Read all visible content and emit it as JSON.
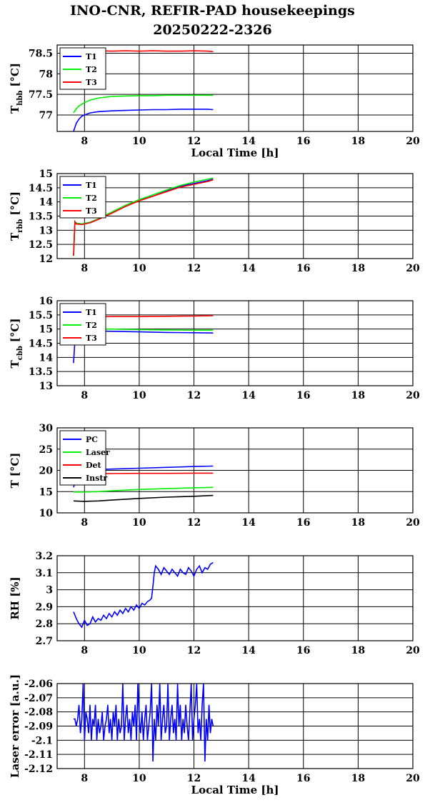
{
  "title": "INO-CNR, REFIR-PAD housekeepings",
  "subtitle": "20250222-2326",
  "colors": {
    "blue": "#0000ff",
    "green": "#00ee00",
    "red": "#ff0000",
    "black": "#000000"
  },
  "chart_data": [
    {
      "type": "line",
      "ylabel": "T",
      "ylabel_sub": "hbb",
      "ylabel_unit": "[°C]",
      "xlabel": "Local Time [h]",
      "xlim": [
        7,
        20
      ],
      "ylim": [
        76.6,
        78.7
      ],
      "xticks": [
        "8",
        "10",
        "12",
        "14",
        "16",
        "18",
        "20"
      ],
      "yticks": [
        "77",
        "77.5",
        "78",
        "78.5"
      ],
      "grid": true,
      "legend": "top-left",
      "series": [
        {
          "name": "T1",
          "color": "blue",
          "x": [
            7.6,
            7.7,
            7.8,
            7.9,
            8.0,
            8.2,
            8.5,
            9.0,
            9.5,
            10.0,
            10.5,
            11.0,
            11.5,
            12.0,
            12.5,
            12.7
          ],
          "values": [
            76.6,
            76.8,
            76.9,
            76.97,
            77.0,
            77.05,
            77.08,
            77.1,
            77.11,
            77.12,
            77.13,
            77.13,
            77.14,
            77.14,
            77.14,
            77.13
          ]
        },
        {
          "name": "T2",
          "color": "green",
          "x": [
            7.6,
            7.7,
            7.8,
            8.0,
            8.2,
            8.5,
            9.0,
            9.5,
            10.0,
            10.5,
            11.0,
            11.5,
            12.0,
            12.5,
            12.7
          ],
          "values": [
            77.05,
            77.15,
            77.22,
            77.3,
            77.36,
            77.41,
            77.45,
            77.46,
            77.47,
            77.47,
            77.48,
            77.48,
            77.48,
            77.48,
            77.48
          ]
        },
        {
          "name": "T3",
          "color": "red",
          "x": [
            7.6,
            8.0,
            8.5,
            9.0,
            9.5,
            10.0,
            10.5,
            11.0,
            11.5,
            12.0,
            12.5,
            12.7
          ],
          "values": [
            78.55,
            78.56,
            78.56,
            78.55,
            78.56,
            78.55,
            78.56,
            78.55,
            78.55,
            78.56,
            78.55,
            78.54
          ]
        }
      ]
    },
    {
      "type": "line",
      "ylabel": "T",
      "ylabel_sub": "rbb",
      "ylabel_unit": "[°C]",
      "xlabel": "",
      "xlim": [
        7,
        20
      ],
      "ylim": [
        12,
        15
      ],
      "xticks": [
        "8",
        "10",
        "12",
        "14",
        "16",
        "18",
        "20"
      ],
      "yticks": [
        "12",
        "12.5",
        "13",
        "13.5",
        "14",
        "14.5",
        "15"
      ],
      "grid": true,
      "legend": "top-left",
      "series": [
        {
          "name": "T1",
          "color": "blue",
          "x": [
            7.6,
            7.65,
            7.7,
            7.9,
            8.2,
            8.5,
            9.0,
            9.5,
            10.0,
            10.5,
            11.0,
            11.5,
            12.0,
            12.5,
            12.7
          ],
          "values": [
            12.1,
            13.3,
            13.25,
            13.22,
            13.28,
            13.4,
            13.62,
            13.85,
            14.05,
            14.2,
            14.38,
            14.55,
            14.65,
            14.75,
            14.8
          ]
        },
        {
          "name": "T2",
          "color": "green",
          "x": [
            7.6,
            7.65,
            7.7,
            7.9,
            8.2,
            8.5,
            9.0,
            9.5,
            10.0,
            10.5,
            11.0,
            11.5,
            12.0,
            12.5,
            12.7
          ],
          "values": [
            12.1,
            13.3,
            13.25,
            13.22,
            13.28,
            13.4,
            13.64,
            13.88,
            14.08,
            14.25,
            14.42,
            14.58,
            14.7,
            14.8,
            14.84
          ]
        },
        {
          "name": "T3",
          "color": "red",
          "x": [
            7.6,
            7.65,
            7.7,
            7.9,
            8.2,
            8.5,
            9.0,
            9.5,
            10.0,
            10.5,
            11.0,
            11.5,
            12.0,
            12.5,
            12.7
          ],
          "values": [
            12.1,
            13.3,
            13.22,
            13.2,
            13.26,
            13.38,
            13.6,
            13.84,
            14.04,
            14.2,
            14.36,
            14.52,
            14.62,
            14.72,
            14.78
          ]
        }
      ]
    },
    {
      "type": "line",
      "ylabel": "T",
      "ylabel_sub": "cbb",
      "ylabel_unit": "[°C]",
      "xlabel": "",
      "xlim": [
        7,
        20
      ],
      "ylim": [
        13,
        16
      ],
      "xticks": [
        "8",
        "10",
        "12",
        "14",
        "16",
        "18",
        "20"
      ],
      "yticks": [
        "13",
        "13.5",
        "14",
        "14.5",
        "15",
        "15.5",
        "16"
      ],
      "grid": true,
      "legend": "top-left",
      "series": [
        {
          "name": "T1",
          "color": "blue",
          "x": [
            7.6,
            7.65,
            7.7,
            8.0,
            8.5,
            9.0,
            10.0,
            11.0,
            12.0,
            12.7
          ],
          "values": [
            13.8,
            14.6,
            14.95,
            14.96,
            14.93,
            14.92,
            14.9,
            14.88,
            14.87,
            14.86
          ]
        },
        {
          "name": "T2",
          "color": "green",
          "x": [
            7.6,
            7.7,
            8.0,
            8.5,
            9.0,
            10.0,
            11.0,
            12.0,
            12.7
          ],
          "values": [
            15.0,
            15.02,
            15.02,
            15.0,
            15.0,
            14.98,
            14.97,
            14.96,
            14.96
          ]
        },
        {
          "name": "T3",
          "color": "red",
          "x": [
            7.6,
            8.0,
            8.5,
            9.0,
            10.0,
            11.0,
            12.0,
            12.7
          ],
          "values": [
            15.45,
            15.44,
            15.43,
            15.44,
            15.44,
            15.45,
            15.46,
            15.47
          ]
        }
      ]
    },
    {
      "type": "line",
      "ylabel": "T",
      "ylabel_sub": "",
      "ylabel_unit": "[°C]",
      "xlabel": "",
      "xlim": [
        7,
        20
      ],
      "ylim": [
        10,
        30
      ],
      "xticks": [
        "8",
        "10",
        "12",
        "14",
        "16",
        "18",
        "20"
      ],
      "yticks": [
        "10",
        "15",
        "20",
        "25",
        "30"
      ],
      "grid": true,
      "legend": "top-left",
      "series": [
        {
          "name": "PC",
          "color": "blue",
          "x": [
            7.6,
            7.7,
            7.9,
            8.2,
            8.5,
            9.0,
            10.0,
            11.0,
            12.0,
            12.7
          ],
          "values": [
            16.0,
            18.0,
            19.8,
            20.1,
            20.2,
            20.3,
            20.5,
            20.7,
            20.9,
            21.0
          ]
        },
        {
          "name": "Laser",
          "color": "green",
          "x": [
            7.6,
            8.0,
            8.5,
            9.0,
            10.0,
            11.0,
            12.0,
            12.7
          ],
          "values": [
            14.9,
            14.9,
            15.0,
            15.2,
            15.5,
            15.7,
            15.9,
            16.0
          ]
        },
        {
          "name": "Det",
          "color": "red",
          "x": [
            7.6,
            8.0,
            8.5,
            9.0,
            10.0,
            11.0,
            12.0,
            12.7
          ],
          "values": [
            19.2,
            19.2,
            19.2,
            19.25,
            19.3,
            19.3,
            19.35,
            19.35
          ]
        },
        {
          "name": "Instr",
          "color": "black",
          "x": [
            7.6,
            8.0,
            8.5,
            9.0,
            10.0,
            11.0,
            12.0,
            12.7
          ],
          "values": [
            12.8,
            12.7,
            12.8,
            13.0,
            13.4,
            13.7,
            13.9,
            14.1
          ]
        }
      ]
    },
    {
      "type": "line",
      "ylabel": "RH [%]",
      "ylabel_sub": "",
      "ylabel_unit": "",
      "xlabel": "",
      "xlim": [
        7,
        20
      ],
      "ylim": [
        2.7,
        3.2
      ],
      "xticks": [
        "8",
        "10",
        "12",
        "14",
        "16",
        "18",
        "20"
      ],
      "yticks": [
        "2.7",
        "2.8",
        "2.9",
        "3",
        "3.1",
        "3.2"
      ],
      "grid": true,
      "legend": "none",
      "series": [
        {
          "name": "",
          "color": "blue",
          "x": [
            7.6,
            7.7,
            7.8,
            7.9,
            8.0,
            8.1,
            8.2,
            8.3,
            8.4,
            8.5,
            8.6,
            8.7,
            8.8,
            8.9,
            9.0,
            9.1,
            9.2,
            9.3,
            9.4,
            9.5,
            9.6,
            9.7,
            9.8,
            9.9,
            10.0,
            10.1,
            10.2,
            10.3,
            10.4,
            10.45,
            10.5,
            10.55,
            10.6,
            10.7,
            10.8,
            10.9,
            11.0,
            11.1,
            11.2,
            11.3,
            11.4,
            11.5,
            11.6,
            11.7,
            11.8,
            11.9,
            12.0,
            12.1,
            12.2,
            12.3,
            12.4,
            12.5,
            12.6,
            12.7
          ],
          "values": [
            2.87,
            2.83,
            2.8,
            2.78,
            2.82,
            2.79,
            2.8,
            2.84,
            2.81,
            2.83,
            2.82,
            2.85,
            2.83,
            2.86,
            2.84,
            2.87,
            2.85,
            2.88,
            2.86,
            2.89,
            2.87,
            2.9,
            2.88,
            2.91,
            2.89,
            2.92,
            2.91,
            2.93,
            2.94,
            2.95,
            3.02,
            3.1,
            3.14,
            3.12,
            3.09,
            3.13,
            3.11,
            3.09,
            3.12,
            3.1,
            3.08,
            3.12,
            3.1,
            3.09,
            3.13,
            3.11,
            3.08,
            3.12,
            3.14,
            3.1,
            3.13,
            3.12,
            3.15,
            3.16
          ]
        }
      ]
    },
    {
      "type": "line",
      "ylabel": "Laser error [a.u.]",
      "ylabel_sub": "",
      "ylabel_unit": "",
      "xlabel": "Local Time [h]",
      "xlim": [
        7,
        20
      ],
      "ylim": [
        -2.12,
        -2.06
      ],
      "xticks": [
        "8",
        "10",
        "12",
        "14",
        "16",
        "18",
        "20"
      ],
      "yticks": [
        "-2.12",
        "-2.11",
        "-2.1",
        "-2.09",
        "-2.08",
        "-2.07",
        "-2.06"
      ],
      "grid": true,
      "legend": "none",
      "series": [
        {
          "name": "",
          "color": "blue",
          "x": [
            7.6,
            7.65,
            7.7,
            7.75,
            7.8,
            7.85,
            7.9,
            7.95,
            8.0,
            8.05,
            8.1,
            8.15,
            8.2,
            8.25,
            8.3,
            8.35,
            8.4,
            8.45,
            8.5,
            8.55,
            8.6,
            8.65,
            8.7,
            8.75,
            8.8,
            8.85,
            8.9,
            8.95,
            9.0,
            9.05,
            9.1,
            9.15,
            9.2,
            9.25,
            9.3,
            9.35,
            9.4,
            9.45,
            9.5,
            9.55,
            9.6,
            9.65,
            9.7,
            9.75,
            9.8,
            9.85,
            9.9,
            9.95,
            10.0,
            10.05,
            10.1,
            10.15,
            10.2,
            10.25,
            10.3,
            10.35,
            10.4,
            10.45,
            10.5,
            10.55,
            10.6,
            10.65,
            10.7,
            10.75,
            10.8,
            10.85,
            10.9,
            10.95,
            11.0,
            11.05,
            11.1,
            11.15,
            11.2,
            11.25,
            11.3,
            11.35,
            11.4,
            11.45,
            11.5,
            11.55,
            11.6,
            11.65,
            11.7,
            11.75,
            11.8,
            11.85,
            11.9,
            11.95,
            12.0,
            12.05,
            12.1,
            12.15,
            12.2,
            12.25,
            12.3,
            12.35,
            12.4,
            12.45,
            12.5,
            12.55,
            12.6,
            12.65,
            12.7
          ],
          "values": [
            -2.085,
            -2.085,
            -2.09,
            -2.085,
            -2.075,
            -2.095,
            -2.085,
            -2.06,
            -2.1,
            -2.08,
            -2.085,
            -2.095,
            -2.075,
            -2.1,
            -2.085,
            -2.09,
            -2.075,
            -2.1,
            -2.085,
            -2.095,
            -2.09,
            -2.08,
            -2.1,
            -2.09,
            -2.085,
            -2.075,
            -2.095,
            -2.085,
            -2.1,
            -2.08,
            -2.09,
            -2.075,
            -2.1,
            -2.085,
            -2.095,
            -2.09,
            -2.06,
            -2.1,
            -2.085,
            -2.075,
            -2.095,
            -2.085,
            -2.1,
            -2.08,
            -2.09,
            -2.075,
            -2.1,
            -2.06,
            -2.085,
            -2.095,
            -2.08,
            -2.1,
            -2.085,
            -2.075,
            -2.1,
            -2.09,
            -2.08,
            -2.06,
            -2.115,
            -2.085,
            -2.1,
            -2.075,
            -2.09,
            -2.06,
            -2.1,
            -2.085,
            -2.075,
            -2.095,
            -2.09,
            -2.06,
            -2.1,
            -2.085,
            -2.075,
            -2.095,
            -2.085,
            -2.1,
            -2.06,
            -2.09,
            -2.075,
            -2.1,
            -2.085,
            -2.095,
            -2.075,
            -2.09,
            -2.1,
            -2.08,
            -2.06,
            -2.1,
            -2.085,
            -2.075,
            -2.06,
            -2.095,
            -2.085,
            -2.1,
            -2.075,
            -2.06,
            -2.115,
            -2.085,
            -2.1,
            -2.075,
            -2.095,
            -2.085,
            -2.09
          ]
        }
      ]
    }
  ]
}
